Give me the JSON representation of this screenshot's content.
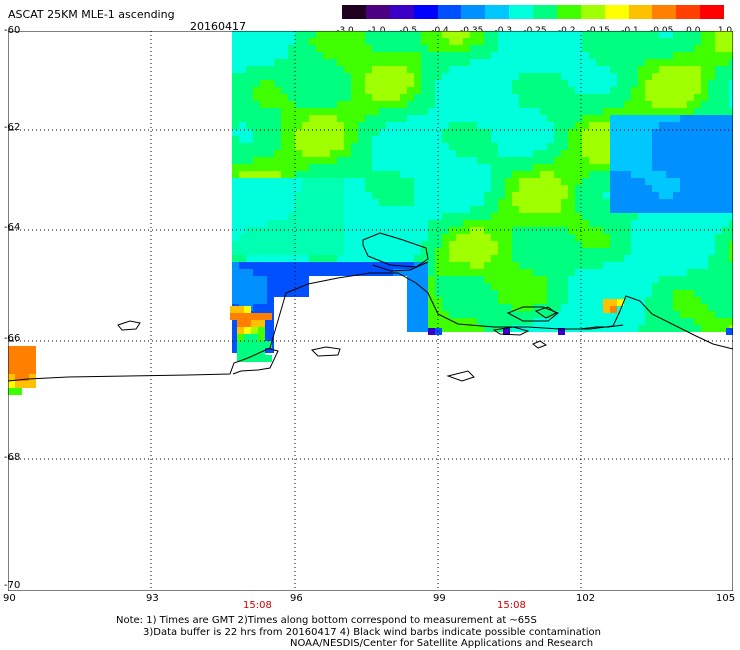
{
  "title": "ASCAT 25KM MLE-1 ascending",
  "date": "20160417",
  "colorbar": {
    "ticks": [
      "-3.0",
      "-1.0",
      "-0.5",
      "-0.4",
      "-0.35",
      "-0.3",
      "-0.25",
      "-0.2",
      "-0.15",
      "-0.1",
      "-0.05",
      "0.0",
      "1.0"
    ],
    "colors": [
      "#200020",
      "#4b0082",
      "#3a00c8",
      "#0000ff",
      "#0050ff",
      "#0090ff",
      "#00c8ff",
      "#00ffdc",
      "#00ff80",
      "#40ff00",
      "#a0ff00",
      "#ffff00",
      "#ffc000",
      "#ff8000",
      "#ff4000",
      "#ff0000"
    ]
  },
  "axes": {
    "lat_labels": [
      "-60",
      "-62",
      "-64",
      "-66",
      "-68",
      "-70"
    ],
    "lon_labels": [
      "90",
      "93",
      "96",
      "99",
      "102",
      "105"
    ]
  },
  "times": [
    "15:08",
    "15:08"
  ],
  "notes": [
    "Note: 1) Times are GMT 2)Times along bottom correspond to measurement at ~65S",
    "3)Data buffer is 22 hrs from 20160417 4) Black wind barbs indicate possible contamination",
    "NOAA/NESDIS/Center for Satellite Applications and Research"
  ]
}
